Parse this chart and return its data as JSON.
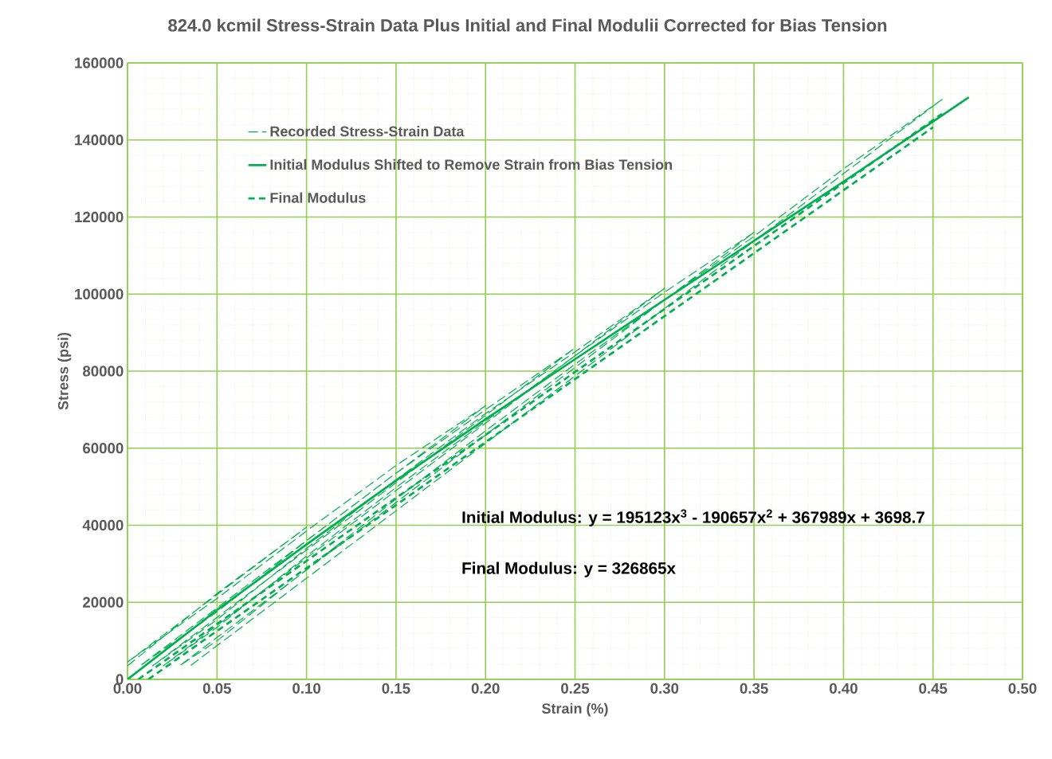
{
  "chart_data": {
    "type": "line",
    "title": "824.0 kcmil Stress-Strain Data Plus Initial and Final Modulii Corrected for Bias Tension",
    "xlabel": "Strain (%)",
    "ylabel": "Stress (psi)",
    "xlim": [
      0,
      0.5
    ],
    "ylim": [
      0,
      160000
    ],
    "xticks": [
      {
        "value": 0,
        "label": "0.00"
      },
      {
        "value": 0.01,
        "label": null
      },
      {
        "value": 0.02,
        "label": null
      },
      {
        "value": 0.03,
        "label": null
      },
      {
        "value": 0.04,
        "label": null
      },
      {
        "value": 0.05,
        "label": "0.05"
      },
      {
        "value": 0.06,
        "label": null
      },
      {
        "value": 0.07,
        "label": null
      },
      {
        "value": 0.08,
        "label": null
      },
      {
        "value": 0.09,
        "label": null
      },
      {
        "value": 0.1,
        "label": "0.10"
      },
      {
        "value": 0.11,
        "label": null
      },
      {
        "value": 0.12,
        "label": null
      },
      {
        "value": 0.13,
        "label": null
      },
      {
        "value": 0.14,
        "label": null
      },
      {
        "value": 0.15,
        "label": "0.15"
      },
      {
        "value": 0.16,
        "label": null
      },
      {
        "value": 0.17,
        "label": null
      },
      {
        "value": 0.18,
        "label": null
      },
      {
        "value": 0.19,
        "label": null
      },
      {
        "value": 0.2,
        "label": "0.20"
      },
      {
        "value": 0.21,
        "label": null
      },
      {
        "value": 0.22,
        "label": null
      },
      {
        "value": 0.23,
        "label": null
      },
      {
        "value": 0.24,
        "label": null
      },
      {
        "value": 0.25,
        "label": "0.25"
      },
      {
        "value": 0.26,
        "label": null
      },
      {
        "value": 0.27,
        "label": null
      },
      {
        "value": 0.28,
        "label": null
      },
      {
        "value": 0.29,
        "label": null
      },
      {
        "value": 0.3,
        "label": "0.30"
      },
      {
        "value": 0.31,
        "label": null
      },
      {
        "value": 0.32,
        "label": null
      },
      {
        "value": 0.33,
        "label": null
      },
      {
        "value": 0.34,
        "label": null
      },
      {
        "value": 0.35,
        "label": "0.35"
      },
      {
        "value": 0.36,
        "label": null
      },
      {
        "value": 0.37,
        "label": null
      },
      {
        "value": 0.38,
        "label": null
      },
      {
        "value": 0.39,
        "label": null
      },
      {
        "value": 0.4,
        "label": "0.40"
      },
      {
        "value": 0.41,
        "label": null
      },
      {
        "value": 0.42,
        "label": null
      },
      {
        "value": 0.43,
        "label": null
      },
      {
        "value": 0.44,
        "label": null
      },
      {
        "value": 0.45,
        "label": "0.45"
      },
      {
        "value": 0.46,
        "label": null
      },
      {
        "value": 0.47,
        "label": null
      },
      {
        "value": 0.48,
        "label": null
      },
      {
        "value": 0.49,
        "label": null
      },
      {
        "value": 0.5,
        "label": "0.50"
      }
    ],
    "yticks": [
      0,
      {
        "value": 4000,
        "label": null
      },
      {
        "value": 8000,
        "label": null
      },
      {
        "value": 12000,
        "label": null
      },
      {
        "value": 16000,
        "label": null
      },
      20000,
      {
        "value": 24000,
        "label": null
      },
      {
        "value": 28000,
        "label": null
      },
      {
        "value": 32000,
        "label": null
      },
      {
        "value": 36000,
        "label": null
      },
      40000,
      {
        "value": 44000,
        "label": null
      },
      {
        "value": 48000,
        "label": null
      },
      {
        "value": 52000,
        "label": null
      },
      {
        "value": 56000,
        "label": null
      },
      60000,
      {
        "value": 64000,
        "label": null
      },
      {
        "value": 68000,
        "label": null
      },
      {
        "value": 72000,
        "label": null
      },
      {
        "value": 76000,
        "label": null
      },
      80000,
      {
        "value": 84000,
        "label": null
      },
      {
        "value": 88000,
        "label": null
      },
      {
        "value": 92000,
        "label": null
      },
      {
        "value": 96000,
        "label": null
      },
      100000,
      {
        "value": 104000,
        "label": null
      },
      {
        "value": 108000,
        "label": null
      },
      {
        "value": 112000,
        "label": null
      },
      {
        "value": 116000,
        "label": null
      },
      120000,
      {
        "value": 124000,
        "label": null
      },
      {
        "value": 128000,
        "label": null
      },
      {
        "value": 132000,
        "label": null
      },
      {
        "value": 136000,
        "label": null
      },
      140000,
      {
        "value": 144000,
        "label": null
      },
      {
        "value": 148000,
        "label": null
      },
      {
        "value": 152000,
        "label": null
      },
      {
        "value": 156000,
        "label": null
      },
      160000
    ],
    "grid": true,
    "legend": "top left",
    "marker": "none",
    "series": [
      {
        "name": "Recorded Stress-Strain Data",
        "color": "#00b050",
        "line_style": "dashed",
        "x": [
          0,
          0.05,
          0.1,
          0,
          0.05,
          0.1,
          0.15,
          0.2,
          0.007,
          0.05,
          0.1,
          0.15,
          0.2,
          0.25,
          0.014,
          0.05,
          0.1,
          0.15,
          0.2,
          0.25,
          0.3,
          0.02,
          0.05,
          0.1,
          0.15,
          0.2,
          0.25,
          0.3,
          0.35,
          0.029,
          0.05,
          0.1,
          0.15,
          0.2,
          0.25,
          0.3,
          0.35,
          0.4,
          0.455,
          0.035
        ],
        "values": [
          3500,
          22300,
          39500,
          4500,
          21000,
          38500,
          55500,
          71000,
          3500,
          17500,
          36000,
          53500,
          70000,
          86000,
          3500,
          15500,
          34000,
          51800,
          69000,
          85000,
          101500,
          3500,
          13500,
          32000,
          49800,
          67000,
          84000,
          100500,
          116000,
          3500,
          10000,
          28500,
          46800,
          64500,
          81800,
          98500,
          115000,
          132500,
          150500,
          3500
        ]
      },
      {
        "name": "Initial Modulus Shifted to Remove Strain from Bias Tension",
        "color": "#00b050",
        "line_style": "solid",
        "x": [
          0,
          0.05,
          0.1,
          0.15,
          0.2,
          0.25,
          0.3,
          0.35,
          0.4,
          0.45,
          0.47
        ],
        "values": [
          0,
          18000,
          35000,
          51600,
          67500,
          83100,
          98500,
          113800,
          129200,
          144800,
          151100
        ]
      },
      {
        "name": "Final Modulus",
        "color": "#00b050",
        "line_style": "dashed",
        "x": [
          0.006,
          0.455,
          null,
          0.0116,
          0.45
        ],
        "values": [
          0,
          146800,
          null,
          0,
          143300
        ]
      }
    ],
    "annotations": [
      "Initial Modulus: y = 195123x$^{3}$ - 190657x$^{2}$ + 367989x + 3698.7",
      "Final Modulus: y = 326865x"
    ]
  }
}
